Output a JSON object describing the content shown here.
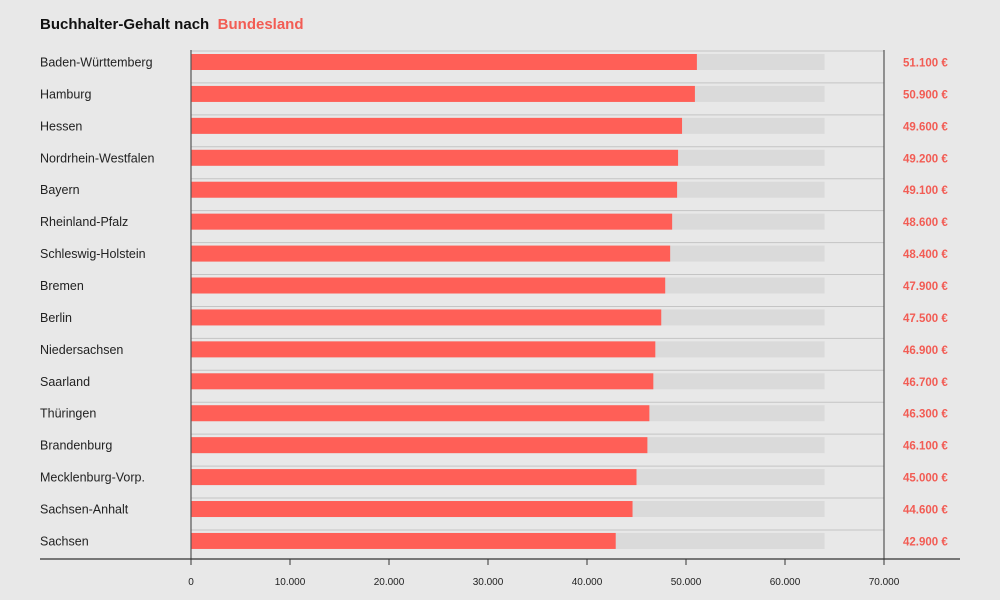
{
  "colors": {
    "background": "#e8e8e8",
    "bar": "#ff5f57",
    "track": "#dadada",
    "accent": "#f25c54",
    "axis": "#555555"
  },
  "chart_data": {
    "type": "bar",
    "orientation": "horizontal",
    "title": "Buchhalter-Gehalt nach",
    "title_highlight": "Bundesland",
    "categories": [
      "Baden-Württemberg",
      "Hamburg",
      "Hessen",
      "Nordrhein-Westfalen",
      "Bayern",
      "Rheinland-Pfalz",
      "Schleswig-Holstein",
      "Bremen",
      "Berlin",
      "Niedersachsen",
      "Saarland",
      "Thüringen",
      "Brandenburg",
      "Mecklenburg-Vorp.",
      "Sachsen-Anhalt",
      "Sachsen"
    ],
    "values": [
      51100,
      50900,
      49600,
      49200,
      49100,
      48600,
      48400,
      47900,
      47500,
      46900,
      46700,
      46300,
      46100,
      45000,
      44600,
      42900
    ],
    "value_labels": [
      "51.100  €",
      "50.900 €",
      "49.600 €",
      "49.200 €",
      "49.100 €",
      "48.600 €",
      "48.400 €",
      "47.900 €",
      "47.500 €",
      "46.900 €",
      "46.700 €",
      "46.300 €",
      "46.100 €",
      "45.000 €",
      "44.600 €",
      "42.900 €"
    ],
    "track_max": 64000,
    "xlim": [
      0,
      70000
    ],
    "ticks": [
      0,
      10000,
      20000,
      30000,
      40000,
      50000,
      60000,
      70000
    ],
    "tick_labels": [
      "0",
      "10.000",
      "20.000",
      "30.000",
      "40.000",
      "50.000",
      "60.000",
      "70.000"
    ],
    "xlabel": "",
    "ylabel": ""
  }
}
